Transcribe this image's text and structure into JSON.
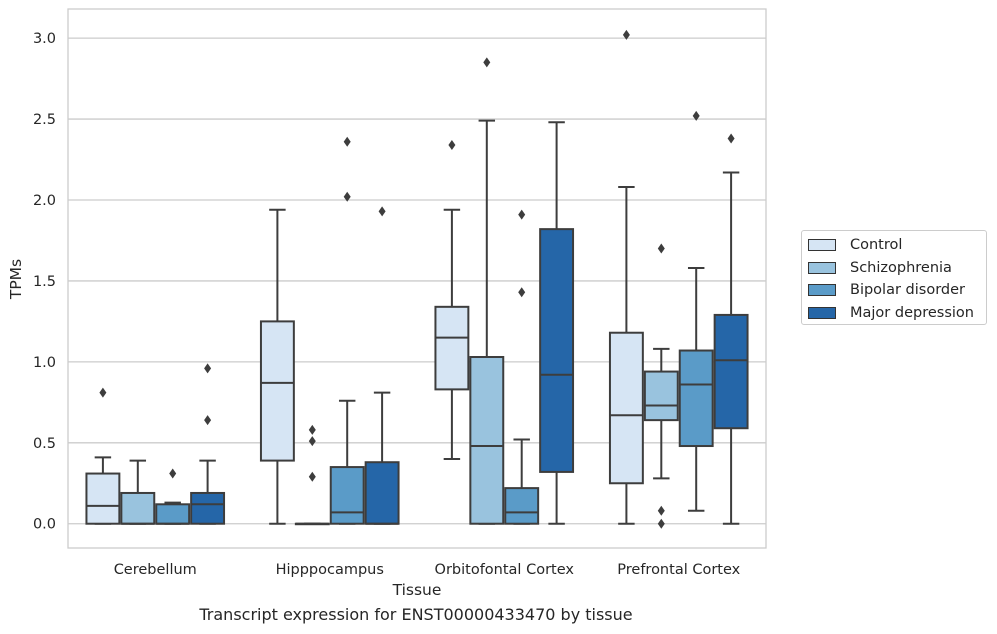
{
  "caption": "Transcript expression for ENST00000433470 by tissue",
  "chart_data": {
    "type": "box",
    "xlabel": "Tissue",
    "ylabel": "TPMs",
    "ylim": [
      -0.15,
      3.18
    ],
    "yticks": [
      "0.0",
      "0.5",
      "1.0",
      "1.5",
      "2.0",
      "2.5",
      "3.0"
    ],
    "grid": "horizontal",
    "legend_position": "right",
    "categories": [
      "Cerebellum",
      "Hipppocampus",
      "Orbitofontal Cortex",
      "Prefrontal Cortex"
    ],
    "series": [
      {
        "name": "Control",
        "color": "#d6e5f4",
        "boxes": [
          {
            "whisker_low": 0,
            "q1": 0,
            "median": 0.11,
            "q3": 0.31,
            "whisker_high": 0.41,
            "outliers": [
              0.81
            ]
          },
          {
            "whisker_low": 0,
            "q1": 0.39,
            "median": 0.87,
            "q3": 1.25,
            "whisker_high": 1.94,
            "outliers": []
          },
          {
            "whisker_low": 0.4,
            "q1": 0.83,
            "median": 1.15,
            "q3": 1.34,
            "whisker_high": 1.94,
            "outliers": [
              2.34
            ]
          },
          {
            "whisker_low": 0,
            "q1": 0.25,
            "median": 0.67,
            "q3": 1.18,
            "whisker_high": 2.08,
            "outliers": [
              3.02
            ]
          }
        ]
      },
      {
        "name": "Schizophrenia",
        "color": "#99c3de",
        "boxes": [
          {
            "whisker_low": 0,
            "q1": 0,
            "median": 0,
            "q3": 0.19,
            "whisker_high": 0.39,
            "outliers": []
          },
          {
            "whisker_low": 0,
            "q1": 0,
            "median": 0,
            "q3": 0,
            "whisker_high": 0,
            "outliers": [
              0.29,
              0.51,
              0.58
            ]
          },
          {
            "whisker_low": 0,
            "q1": 0,
            "median": 0.48,
            "q3": 1.03,
            "whisker_high": 2.49,
            "outliers": [
              2.85
            ]
          },
          {
            "whisker_low": 0.28,
            "q1": 0.64,
            "median": 0.73,
            "q3": 0.94,
            "whisker_high": 1.08,
            "outliers": [
              1.7,
              0.08,
              0
            ]
          }
        ]
      },
      {
        "name": "Bipolar disorder",
        "color": "#5a9bc8",
        "boxes": [
          {
            "whisker_low": 0,
            "q1": 0,
            "median": 0,
            "q3": 0.12,
            "whisker_high": 0.13,
            "outliers": [
              0.31
            ]
          },
          {
            "whisker_low": 0,
            "q1": 0,
            "median": 0.07,
            "q3": 0.35,
            "whisker_high": 0.76,
            "outliers": [
              2.02,
              2.36
            ]
          },
          {
            "whisker_low": 0,
            "q1": 0,
            "median": 0.07,
            "q3": 0.22,
            "whisker_high": 0.52,
            "outliers": [
              1.43,
              1.91
            ]
          },
          {
            "whisker_low": 0.08,
            "q1": 0.48,
            "median": 0.86,
            "q3": 1.07,
            "whisker_high": 1.58,
            "outliers": [
              2.52
            ]
          }
        ]
      },
      {
        "name": "Major depression",
        "color": "#2566a8",
        "boxes": [
          {
            "whisker_low": 0,
            "q1": 0,
            "median": 0.12,
            "q3": 0.19,
            "whisker_high": 0.39,
            "outliers": [
              0.64,
              0.96
            ]
          },
          {
            "whisker_low": 0,
            "q1": 0,
            "median": 0,
            "q3": 0.38,
            "whisker_high": 0.81,
            "outliers": [
              1.93
            ]
          },
          {
            "whisker_low": 0,
            "q1": 0.32,
            "median": 0.92,
            "q3": 1.82,
            "whisker_high": 2.48,
            "outliers": []
          },
          {
            "whisker_low": 0,
            "q1": 0.59,
            "median": 1.01,
            "q3": 1.29,
            "whisker_high": 2.17,
            "outliers": [
              2.38
            ]
          }
        ]
      }
    ]
  }
}
